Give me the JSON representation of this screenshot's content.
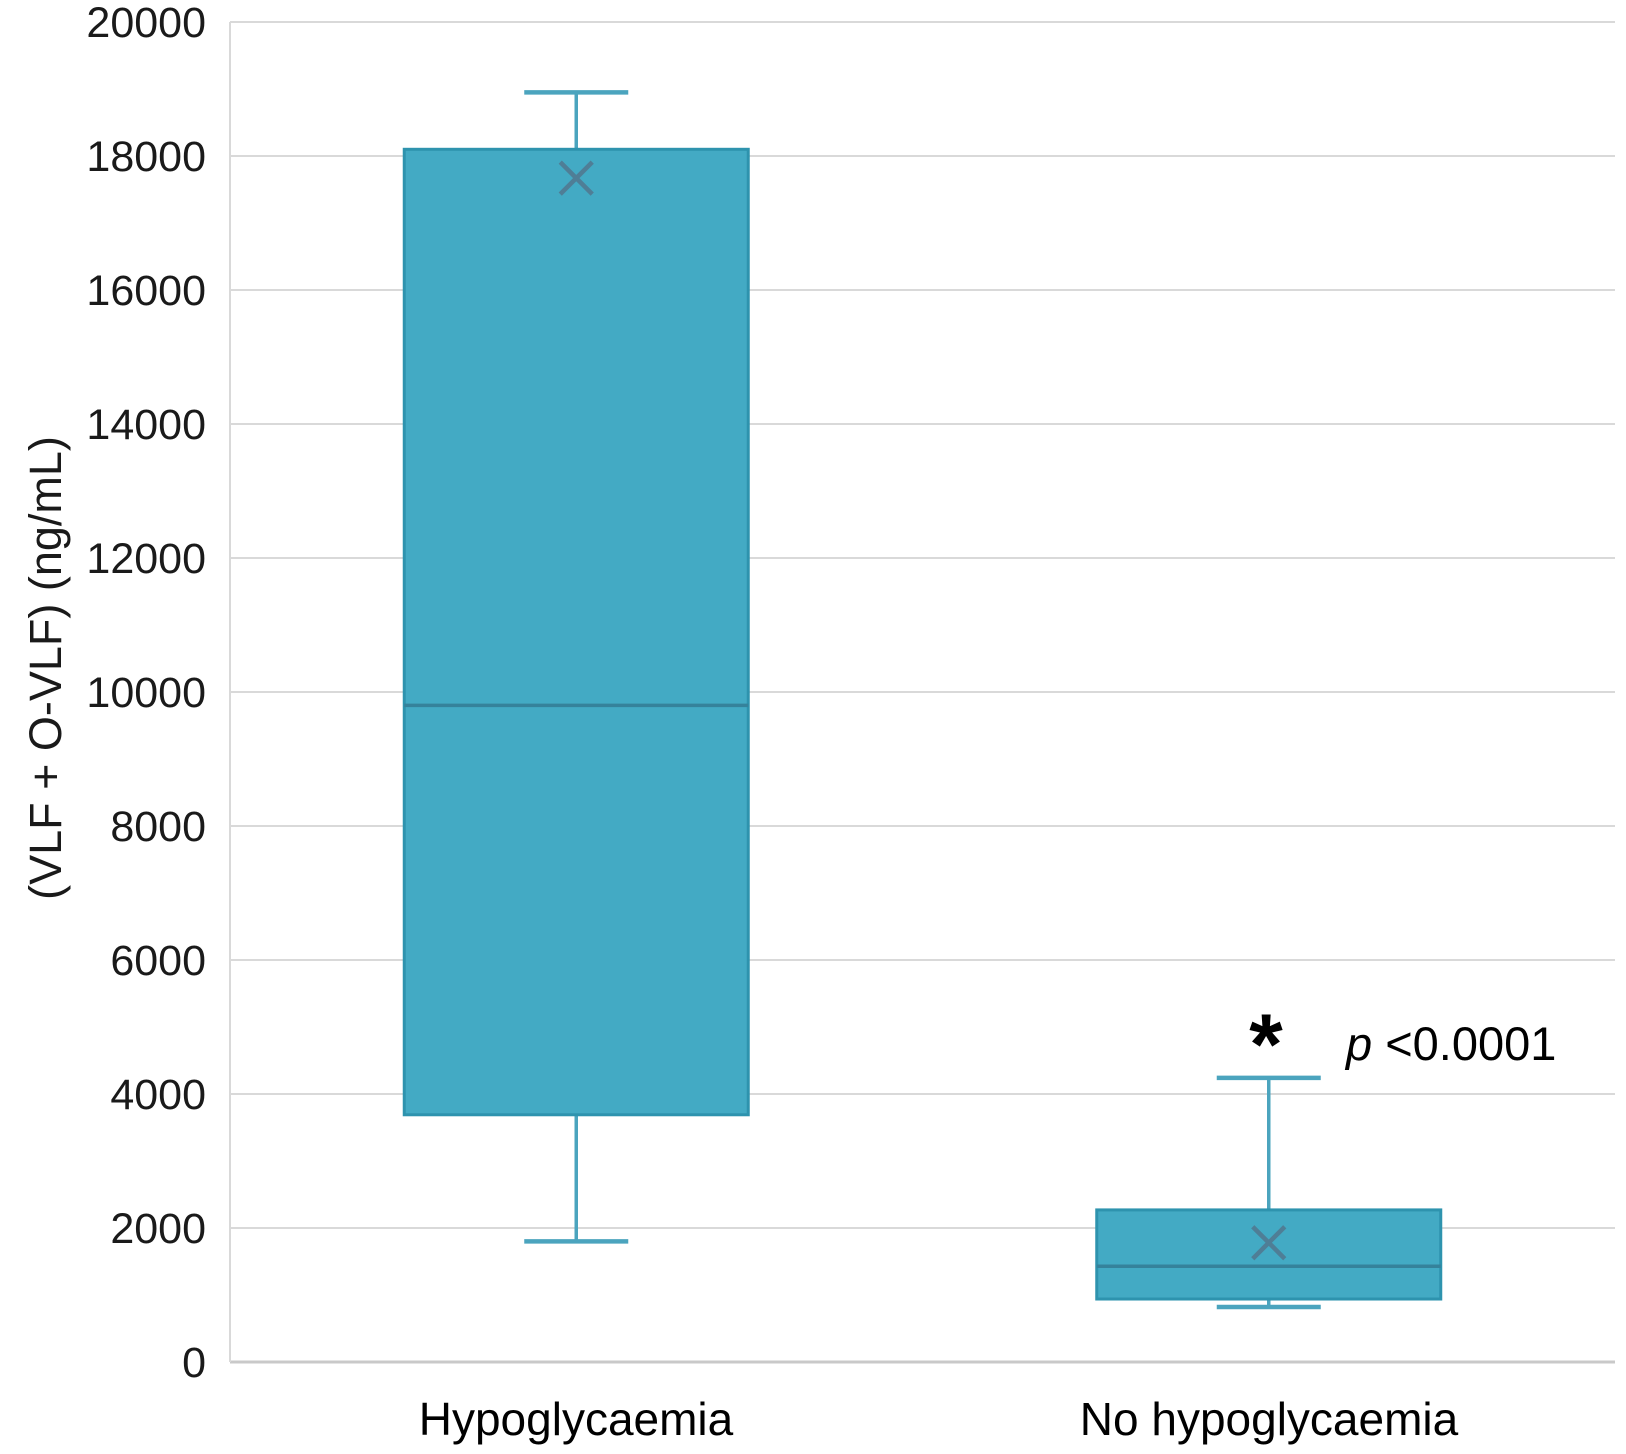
{
  "chart_data": {
    "type": "boxplot",
    "title": "",
    "xlabel": "",
    "ylabel": "(VLF + O-VLF) (ng/mL)",
    "ylim": [
      0,
      20000
    ],
    "yticks": [
      0,
      2000,
      4000,
      6000,
      8000,
      10000,
      12000,
      14000,
      16000,
      18000,
      20000
    ],
    "grid": true,
    "legend": "none",
    "categories": [
      "Hypoglycaemia",
      "No hypoglycaemia"
    ],
    "series": [
      {
        "category": "Hypoglycaemia",
        "whisker_min": 1800,
        "q1": 3690,
        "median": 9800,
        "q3": 18100,
        "whisker_max": 18950,
        "mean": 17670
      },
      {
        "category": "No hypoglycaemia",
        "whisker_min": 820,
        "q1": 940,
        "median": 1430,
        "q3": 2270,
        "whisker_max": 4240,
        "mean": 1780
      }
    ],
    "annotation": {
      "symbol": "*",
      "text": "p <0.0001",
      "italic_part": "p",
      "rest_part": " <0.0001",
      "target_category": "No hypoglycaemia"
    },
    "colors": {
      "box_fill": "#43AAC4",
      "box_border": "#2E93AE",
      "median_line": "#35829B",
      "whisker": "#4BA4BE",
      "mean_marker": "#4F7E96",
      "gridline": "#D9D9D9",
      "axis_line": "#C9C9C9",
      "text": "#1A1A1A"
    }
  }
}
